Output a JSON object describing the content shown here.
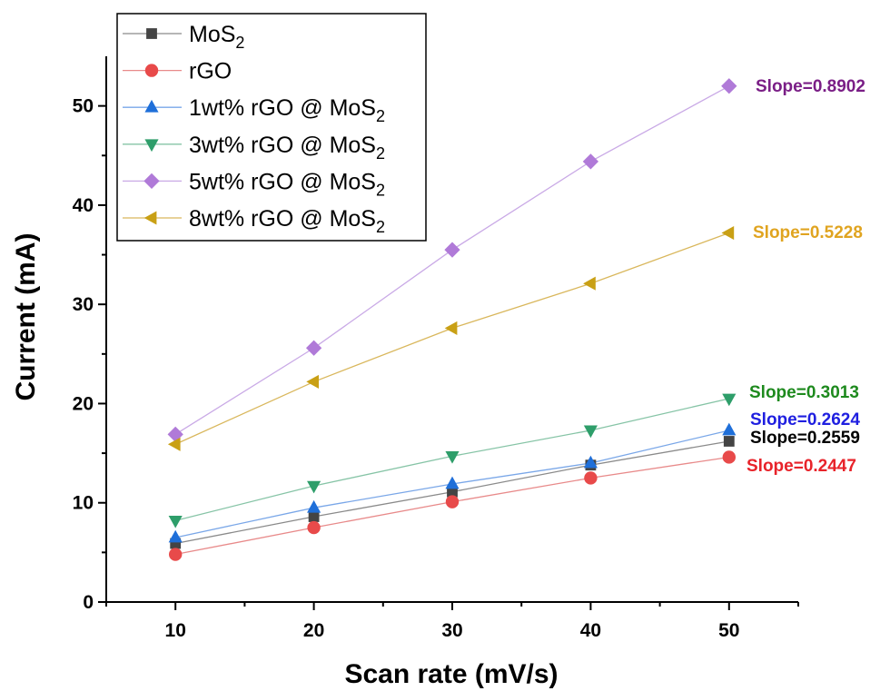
{
  "chart_data": {
    "type": "line",
    "xlabel": "Scan rate (mV/s)",
    "ylabel": "Current (mA)",
    "xlim": [
      5,
      55
    ],
    "ylim": [
      0,
      55
    ],
    "x_ticks": [
      10,
      20,
      30,
      40,
      50
    ],
    "y_ticks": [
      0,
      10,
      20,
      30,
      40,
      50
    ],
    "x": [
      10,
      20,
      30,
      40,
      50
    ],
    "legend_position": "top-left",
    "series": [
      {
        "name": "MoS",
        "name_sub": "2",
        "marker": "square",
        "color": "#444444",
        "line_color": "#8a8a8a",
        "values": [
          5.9,
          8.6,
          11.1,
          13.8,
          16.2
        ],
        "annotation": "Slope=0.2559",
        "annotation_color": "#000000"
      },
      {
        "name": "rGO",
        "name_sub": "",
        "marker": "circle",
        "color": "#e84a4a",
        "line_color": "#e88a8a",
        "values": [
          4.8,
          7.5,
          10.1,
          12.5,
          14.6
        ],
        "annotation": "Slope=0.2447",
        "annotation_color": "#e8232a"
      },
      {
        "name": "1wt% rGO @ MoS",
        "name_sub": "2",
        "marker": "triangle-up",
        "color": "#1f6fd9",
        "line_color": "#7aa7e8",
        "values": [
          6.5,
          9.5,
          11.9,
          14.0,
          17.3
        ],
        "annotation": "Slope=0.2624",
        "annotation_color": "#1f1fe0"
      },
      {
        "name": "3wt% rGO @ MoS",
        "name_sub": "2",
        "marker": "triangle-down",
        "color": "#2e9e6a",
        "line_color": "#86c4a6",
        "values": [
          8.2,
          11.7,
          14.7,
          17.3,
          20.5
        ],
        "annotation": "Slope=0.3013",
        "annotation_color": "#1e8a1e"
      },
      {
        "name": "5wt% rGO @ MoS",
        "name_sub": "2",
        "marker": "diamond",
        "color": "#b07ad8",
        "line_color": "#c9a9e6",
        "values": [
          16.9,
          25.6,
          35.5,
          44.4,
          52.0
        ],
        "annotation": "Slope=0.8902",
        "annotation_color": "#7a1e86"
      },
      {
        "name": "8wt% rGO @ MoS",
        "name_sub": "2",
        "marker": "triangle-left",
        "color": "#c9a015",
        "line_color": "#d9b75c",
        "values": [
          15.9,
          22.2,
          27.6,
          32.1,
          37.2
        ],
        "annotation": "Slope=0.5228",
        "annotation_color": "#e0a420"
      }
    ]
  }
}
